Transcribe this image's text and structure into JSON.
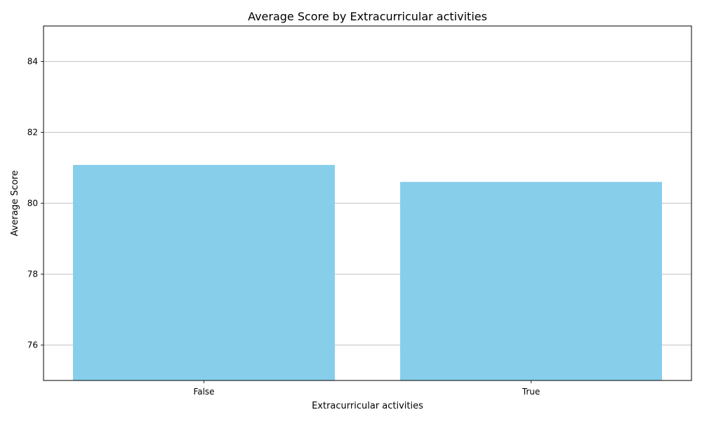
{
  "chart_data": {
    "type": "bar",
    "title": "Average Score by Extracurricular activities",
    "xlabel": "Extracurricular activities",
    "ylabel": "Average Score",
    "categories": [
      "False",
      "True"
    ],
    "values": [
      81.08,
      80.6
    ],
    "ylim": [
      75,
      85
    ],
    "yticks": [
      "76",
      "78",
      "80",
      "82",
      "84"
    ],
    "grid": "y-major",
    "bar_color": "#87CEEB",
    "grid_color": "#b0b0b0"
  }
}
